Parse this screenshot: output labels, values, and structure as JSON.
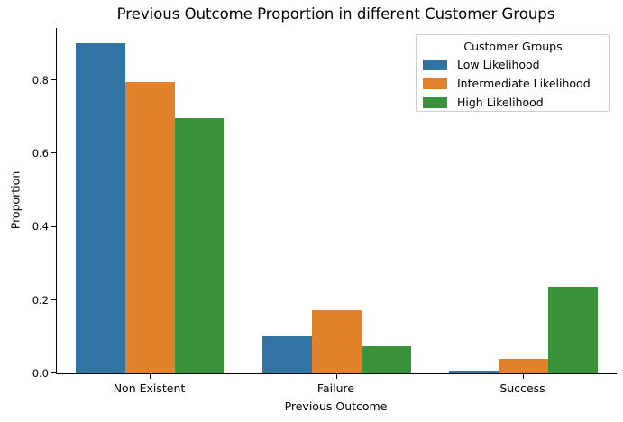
{
  "chart_data": {
    "type": "bar",
    "title": "Previous Outcome Proportion in different Customer Groups",
    "xlabel": "Previous Outcome",
    "ylabel": "Proportion",
    "categories": [
      "Non Existent",
      "Failure",
      "Success"
    ],
    "series": [
      {
        "name": "Low Likelihood",
        "color": "#3274a1",
        "values": [
          0.9,
          0.101,
          0.008
        ]
      },
      {
        "name": "Intermediate Likelihood",
        "color": "#e1812c",
        "values": [
          0.795,
          0.172,
          0.039
        ]
      },
      {
        "name": "High Likelihood",
        "color": "#3a923a",
        "values": [
          0.697,
          0.074,
          0.235
        ]
      }
    ],
    "ylim": [
      0,
      0.942
    ],
    "yticks": [
      0.0,
      0.2,
      0.4,
      0.6,
      0.8
    ],
    "ytick_labels": [
      "0.0",
      "0.2",
      "0.4",
      "0.6",
      "0.8"
    ],
    "grid": false,
    "legend": {
      "title": "Customer Groups",
      "position": "upper right"
    }
  }
}
